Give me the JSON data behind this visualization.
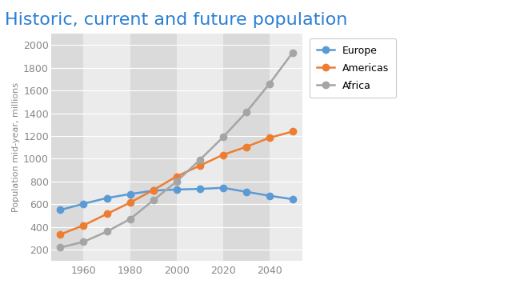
{
  "title": "Historic, current and future population",
  "title_color": "#2B7FD4",
  "ylabel": "Population mid-year, millions",
  "background_color": "#ffffff",
  "plot_bg_color": "#e8e8e8",
  "band_dark": "#dadada",
  "band_light": "#ebebeb",
  "years": [
    1950,
    1960,
    1970,
    1980,
    1990,
    2000,
    2010,
    2020,
    2030,
    2040,
    2050
  ],
  "europe": [
    550,
    605,
    655,
    690,
    720,
    730,
    735,
    745,
    710,
    675,
    645
  ],
  "americas": [
    335,
    415,
    515,
    615,
    725,
    845,
    940,
    1035,
    1105,
    1185,
    1240
  ],
  "africa": [
    220,
    270,
    360,
    470,
    635,
    800,
    990,
    1190,
    1410,
    1660,
    1935
  ],
  "europe_color": "#5b9bd5",
  "americas_color": "#ed7d31",
  "africa_color": "#a5a5a5",
  "ylim": [
    100,
    2100
  ],
  "xlim": [
    1946,
    2054
  ],
  "yticks": [
    200,
    400,
    600,
    800,
    1000,
    1200,
    1400,
    1600,
    1800,
    2000
  ],
  "xticks": [
    1960,
    1980,
    2000,
    2020,
    2040
  ],
  "marker": "o",
  "markersize": 6,
  "linewidth": 1.8,
  "grid_color": "#ffffff",
  "tick_color": "#888888",
  "tick_fontsize": 9,
  "ylabel_fontsize": 8,
  "title_fontsize": 16,
  "legend_fontsize": 9
}
